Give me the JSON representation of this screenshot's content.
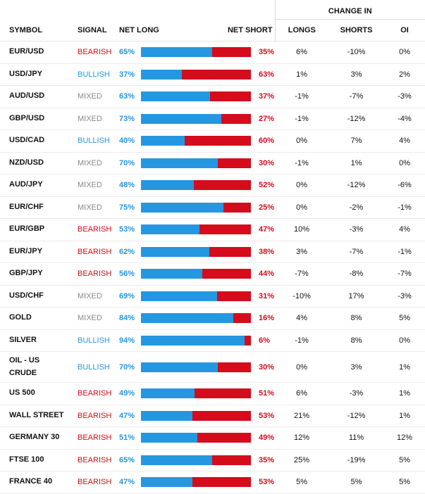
{
  "header": {
    "change_in": "CHANGE IN",
    "symbol": "SYMBOL",
    "signal": "SIGNAL",
    "net_long": "NET LONG",
    "net_short": "NET SHORT",
    "longs": "LONGS",
    "shorts": "SHORTS",
    "oi": "OI"
  },
  "colors": {
    "long_blue": "#2597e0",
    "short_red": "#d40c1b",
    "mixed_gray": "#8a8a8a"
  },
  "rows": [
    {
      "symbol": "EUR/USD",
      "signal": "BEARISH",
      "net_long": "65%",
      "net_long_value": 65,
      "net_short": "35%",
      "longs": "6%",
      "shorts": "-10%",
      "oi": "0%"
    },
    {
      "symbol": "USD/JPY",
      "signal": "BULLISH",
      "net_long": "37%",
      "net_long_value": 37,
      "net_short": "63%",
      "longs": "1%",
      "shorts": "3%",
      "oi": "2%"
    },
    {
      "symbol": "AUD/USD",
      "signal": "MIXED",
      "net_long": "63%",
      "net_long_value": 63,
      "net_short": "37%",
      "longs": "-1%",
      "shorts": "-7%",
      "oi": "-3%"
    },
    {
      "symbol": "GBP/USD",
      "signal": "MIXED",
      "net_long": "73%",
      "net_long_value": 73,
      "net_short": "27%",
      "longs": "-1%",
      "shorts": "-12%",
      "oi": "-4%"
    },
    {
      "symbol": "USD/CAD",
      "signal": "BULLISH",
      "net_long": "40%",
      "net_long_value": 40,
      "net_short": "60%",
      "longs": "0%",
      "shorts": "7%",
      "oi": "4%"
    },
    {
      "symbol": "NZD/USD",
      "signal": "MIXED",
      "net_long": "70%",
      "net_long_value": 70,
      "net_short": "30%",
      "longs": "-1%",
      "shorts": "1%",
      "oi": "0%"
    },
    {
      "symbol": "AUD/JPY",
      "signal": "MIXED",
      "net_long": "48%",
      "net_long_value": 48,
      "net_short": "52%",
      "longs": "0%",
      "shorts": "-12%",
      "oi": "-6%"
    },
    {
      "symbol": "EUR/CHF",
      "signal": "MIXED",
      "net_long": "75%",
      "net_long_value": 75,
      "net_short": "25%",
      "longs": "0%",
      "shorts": "-2%",
      "oi": "-1%"
    },
    {
      "symbol": "EUR/GBP",
      "signal": "BEARISH",
      "net_long": "53%",
      "net_long_value": 53,
      "net_short": "47%",
      "longs": "10%",
      "shorts": "-3%",
      "oi": "4%"
    },
    {
      "symbol": "EUR/JPY",
      "signal": "BEARISH",
      "net_long": "62%",
      "net_long_value": 62,
      "net_short": "38%",
      "longs": "3%",
      "shorts": "-7%",
      "oi": "-1%"
    },
    {
      "symbol": "GBP/JPY",
      "signal": "BEARISH",
      "net_long": "56%",
      "net_long_value": 56,
      "net_short": "44%",
      "longs": "-7%",
      "shorts": "-8%",
      "oi": "-7%"
    },
    {
      "symbol": "USD/CHF",
      "signal": "MIXED",
      "net_long": "69%",
      "net_long_value": 69,
      "net_short": "31%",
      "longs": "-10%",
      "shorts": "17%",
      "oi": "-3%"
    },
    {
      "symbol": "GOLD",
      "signal": "MIXED",
      "net_long": "84%",
      "net_long_value": 84,
      "net_short": "16%",
      "longs": "4%",
      "shorts": "8%",
      "oi": "5%"
    },
    {
      "symbol": "SILVER",
      "signal": "BULLISH",
      "net_long": "94%",
      "net_long_value": 94,
      "net_short": "6%",
      "longs": "-1%",
      "shorts": "8%",
      "oi": "0%"
    },
    {
      "symbol": "OIL - US CRUDE",
      "symbol_line1": "OIL - US",
      "symbol_line2": "CRUDE",
      "signal": "BULLISH",
      "net_long": "70%",
      "net_long_value": 70,
      "net_short": "30%",
      "longs": "0%",
      "shorts": "3%",
      "oi": "1%"
    },
    {
      "symbol": "US 500",
      "signal": "BEARISH",
      "net_long": "49%",
      "net_long_value": 49,
      "net_short": "51%",
      "longs": "6%",
      "shorts": "-3%",
      "oi": "1%"
    },
    {
      "symbol": "WALL STREET",
      "signal": "BEARISH",
      "net_long": "47%",
      "net_long_value": 47,
      "net_short": "53%",
      "longs": "21%",
      "shorts": "-12%",
      "oi": "1%"
    },
    {
      "symbol": "GERMANY 30",
      "signal": "BEARISH",
      "net_long": "51%",
      "net_long_value": 51,
      "net_short": "49%",
      "longs": "12%",
      "shorts": "11%",
      "oi": "12%"
    },
    {
      "symbol": "FTSE 100",
      "signal": "BEARISH",
      "net_long": "65%",
      "net_long_value": 65,
      "net_short": "35%",
      "longs": "25%",
      "shorts": "-19%",
      "oi": "5%"
    },
    {
      "symbol": "FRANCE 40",
      "signal": "BEARISH",
      "net_long": "47%",
      "net_long_value": 47,
      "net_short": "53%",
      "longs": "5%",
      "shorts": "5%",
      "oi": "5%"
    }
  ]
}
